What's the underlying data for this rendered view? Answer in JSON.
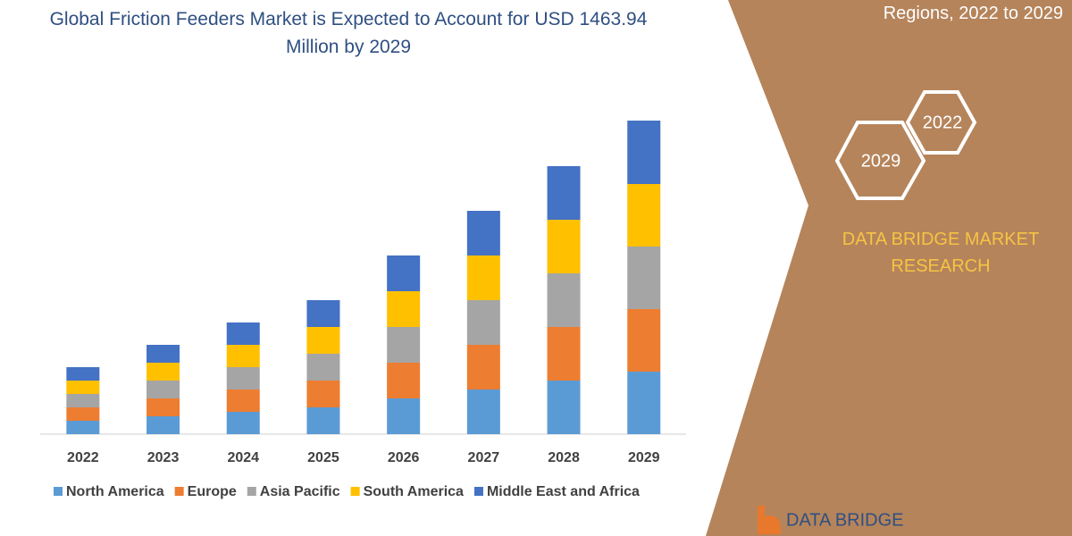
{
  "chart_data": {
    "type": "bar",
    "stacked": true,
    "title": "Global Friction Feeders Market is Expected to Account for USD 1463.94 Million by 2029",
    "categories": [
      "2022",
      "2023",
      "2024",
      "2025",
      "2026",
      "2027",
      "2028",
      "2029"
    ],
    "series": [
      {
        "name": "North America",
        "color": "#5b9bd5",
        "values": [
          15,
          20,
          25,
          30,
          40,
          50,
          60,
          70
        ]
      },
      {
        "name": "Europe",
        "color": "#ed7d31",
        "values": [
          15,
          20,
          25,
          30,
          40,
          50,
          60,
          70
        ]
      },
      {
        "name": "Asia Pacific",
        "color": "#a5a5a5",
        "values": [
          15,
          20,
          25,
          30,
          40,
          50,
          60,
          70
        ]
      },
      {
        "name": "South America",
        "color": "#ffc000",
        "values": [
          15,
          20,
          25,
          30,
          40,
          50,
          60,
          70
        ]
      },
      {
        "name": "Middle East and Africa",
        "color": "#4472c4",
        "values": [
          15,
          20,
          25,
          30,
          40,
          50,
          60,
          71
        ]
      }
    ]
  },
  "panel": {
    "subtitle": "Regions, 2022 to 2029",
    "hexagon_top": "2022",
    "hexagon_bottom": "2029",
    "brand": "DATA BRIDGE MARKET RESEARCH",
    "logo": "DATA BRIDGE"
  }
}
